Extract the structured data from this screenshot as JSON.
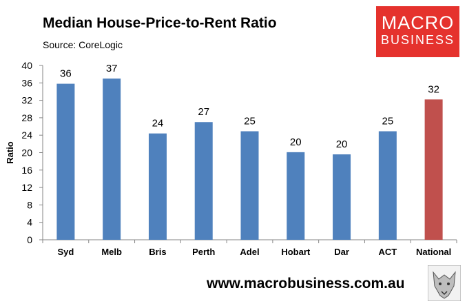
{
  "header": {
    "title": "Median House-Price-to-Rent Ratio",
    "source": "Source: CoreLogic"
  },
  "logo": {
    "line1": "MACRO",
    "line2": "BUSINESS"
  },
  "footer": {
    "url": "www.macrobusiness.com.au",
    "mascot_icon": "wolf-icon"
  },
  "colors": {
    "bar": "#4f81bd",
    "highlight": "#c0504d",
    "brand": "#e5322d"
  },
  "chart_data": {
    "type": "bar",
    "categories": [
      "Syd",
      "Melb",
      "Bris",
      "Perth",
      "Adel",
      "Hobart",
      "Dar",
      "ACT",
      "National"
    ],
    "values": [
      35.8,
      37.0,
      24.4,
      27.0,
      24.9,
      20.1,
      19.6,
      24.9,
      32.2
    ],
    "data_labels": [
      "36",
      "37",
      "24",
      "27",
      "25",
      "20",
      "20",
      "25",
      "32"
    ],
    "highlight_category": "National",
    "ylabel": "Ratio",
    "ylim": [
      0,
      40
    ],
    "yticks": [
      0,
      4,
      8,
      12,
      16,
      20,
      24,
      28,
      32,
      36,
      40
    ],
    "grid": false,
    "legend": "none"
  }
}
